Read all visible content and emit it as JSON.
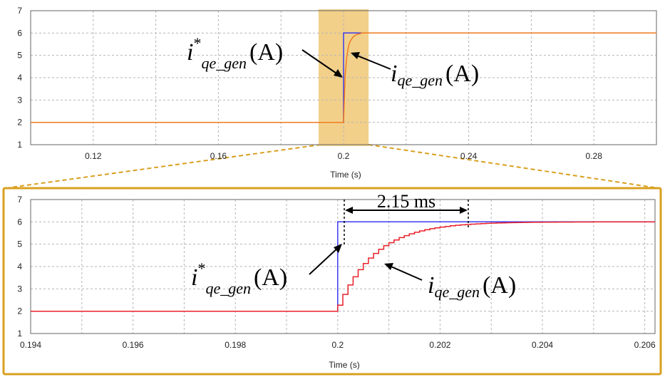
{
  "colors": {
    "reference": "#3a3af0",
    "measured": "#e8202a",
    "measured_top": "#f07a1e",
    "highlight": "#f2d08a",
    "zoom_frame": "#d9a020",
    "grid": "#b5b5b5"
  },
  "chart_data": [
    {
      "id": "overview",
      "type": "line",
      "xlabel": "Time (s)",
      "xlim": [
        0.1,
        0.3
      ],
      "ylim": [
        1,
        7
      ],
      "xticks": [
        "0.12",
        "0.16",
        "0.2",
        "0.24",
        "0.28"
      ],
      "yticks": [
        "1",
        "2",
        "3",
        "4",
        "5",
        "6",
        "7"
      ],
      "grid": true,
      "highlight_range": [
        0.192,
        0.208
      ],
      "series": [
        {
          "role": "reference",
          "x": [
            0.1,
            0.2,
            0.2,
            0.3
          ],
          "y": [
            2,
            2,
            6,
            6
          ]
        },
        {
          "role": "measured",
          "x": [
            0.1,
            0.2,
            0.2005,
            0.201,
            0.2015,
            0.202,
            0.203,
            0.204,
            0.206,
            0.3
          ],
          "y": [
            2,
            2,
            4.1,
            4.9,
            5.35,
            5.6,
            5.82,
            5.92,
            6,
            6
          ]
        }
      ],
      "annotations": [
        {
          "label": "i*qe_gen (A)",
          "base": "i",
          "sup": "*",
          "sub": "qe_gen",
          "unit": "(A)"
        },
        {
          "label": "iqe_gen (A)",
          "base": "i",
          "sub": "qe_gen",
          "unit": "(A)"
        }
      ]
    },
    {
      "id": "zoom",
      "type": "line",
      "xlabel": "Time (s)",
      "xlim": [
        0.194,
        0.2062
      ],
      "ylim": [
        1,
        7
      ],
      "xticks": [
        "0.194",
        "0.196",
        "0.198",
        "0.2",
        "0.202",
        "0.204",
        "0.206"
      ],
      "yticks": [
        "1",
        "2",
        "3",
        "4",
        "5",
        "6",
        "7"
      ],
      "grid": true,
      "series": [
        {
          "role": "reference",
          "x": [
            0.194,
            0.2,
            0.2,
            0.2062
          ],
          "y": [
            2,
            2,
            6,
            6
          ]
        },
        {
          "role": "measured",
          "step_from": 0.2,
          "time_constant": 0.00072,
          "initial": 2,
          "final": 6,
          "sample": 0.0001,
          "xlim": [
            0.194,
            0.2062
          ]
        }
      ],
      "annotations": [
        {
          "label": "i*qe_gen (A)",
          "base": "i",
          "sup": "*",
          "sub": "qe_gen",
          "unit": "(A)"
        },
        {
          "label": "iqe_gen (A)",
          "base": "i",
          "sub": "qe_gen",
          "unit": "(A)"
        },
        {
          "label": "2.15 ms",
          "from": 0.2,
          "to": 0.20215
        }
      ]
    }
  ]
}
